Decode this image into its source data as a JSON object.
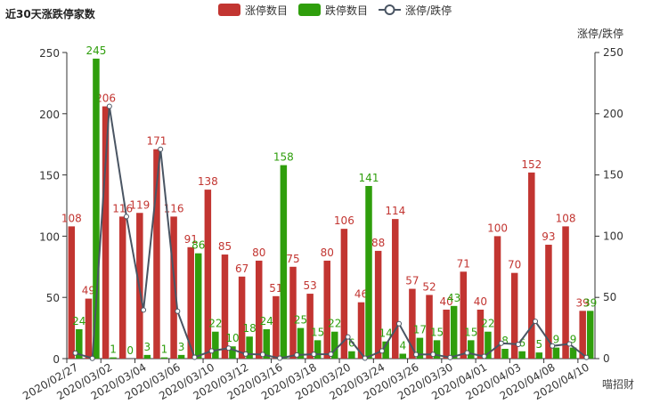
{
  "chart_data": {
    "type": "bar",
    "title": "近30天涨跌停家数",
    "y2_label": "涨停/跌停",
    "watermark": "喵招财",
    "categories": [
      "2020/02/27",
      null,
      "2020/03/02",
      null,
      "2020/03/04",
      null,
      "2020/03/06",
      null,
      "2020/03/10",
      null,
      "2020/03/12",
      null,
      "2020/03/16",
      null,
      "2020/03/18",
      null,
      "2020/03/20",
      null,
      "2020/03/24",
      null,
      "2020/03/26",
      null,
      "2020/03/30",
      null,
      "2020/04/01",
      null,
      "2020/04/03",
      null,
      "2020/04/08",
      null,
      "2020/04/10"
    ],
    "series": [
      {
        "name": "涨停数目",
        "color": "#c23531",
        "values": [
          108,
          49,
          206,
          116,
          119,
          171,
          116,
          91,
          138,
          85,
          67,
          80,
          51,
          75,
          53,
          80,
          106,
          46,
          88,
          114,
          57,
          52,
          40,
          71,
          40,
          100,
          70,
          152,
          93,
          108,
          39
        ]
      },
      {
        "name": "跌停数目",
        "color": "#2f9e0c",
        "values": [
          24,
          245,
          1,
          0,
          3,
          1,
          3,
          86,
          22,
          10,
          18,
          24,
          158,
          25,
          15,
          22,
          6,
          141,
          14,
          4,
          17,
          15,
          43,
          15,
          22,
          8,
          6,
          5,
          9,
          9,
          39
        ]
      },
      {
        "name": "涨停/跌停",
        "color": "#4a5563",
        "type": "line",
        "axis": "y2",
        "values": [
          4.5,
          0.2,
          206,
          116,
          39.67,
          171,
          38.67,
          1.06,
          6.27,
          8.5,
          3.72,
          3.33,
          0.32,
          3,
          3.53,
          3.64,
          17.67,
          0.33,
          6.29,
          28.5,
          3.35,
          3.47,
          0.93,
          4.73,
          1.82,
          12.5,
          11.67,
          30.4,
          10.33,
          12,
          1
        ]
      }
    ],
    "ylim": [
      0,
      250
    ],
    "yticks": [
      0,
      50,
      100,
      150,
      200,
      250
    ],
    "y2lim": [
      0,
      250
    ],
    "y2ticks": [
      0,
      50,
      100,
      150,
      200,
      250
    ]
  }
}
